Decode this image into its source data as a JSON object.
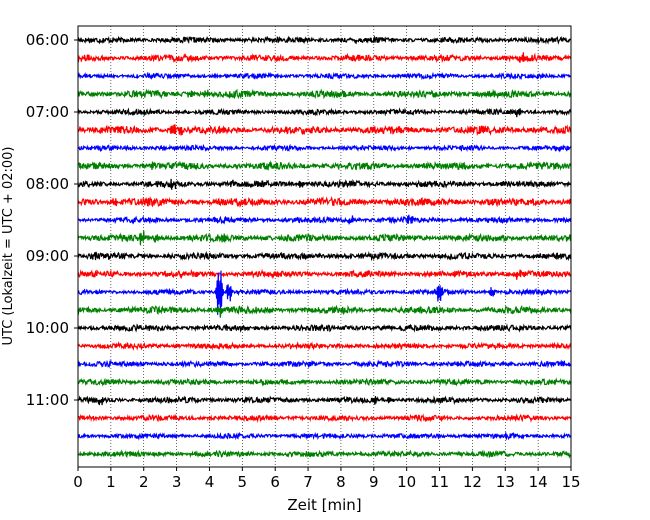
{
  "chart_data": {
    "type": "line",
    "title": "",
    "xlabel": "Zeit  [min]",
    "ylabel": "UTC (Lokalzeit = UTC + 02:00)",
    "xlim": [
      0,
      15
    ],
    "x_ticks": [
      0,
      1,
      2,
      3,
      4,
      5,
      6,
      7,
      8,
      9,
      10,
      11,
      12,
      13,
      14,
      15
    ],
    "x_tick_labels": [
      "0",
      "1",
      "2",
      "3",
      "4",
      "5",
      "6",
      "7",
      "8",
      "9",
      "10",
      "11",
      "12",
      "13",
      "14",
      "15"
    ],
    "y_tick_labels": [
      "06:00",
      "07:00",
      "08:00",
      "09:00",
      "10:00",
      "11:00"
    ],
    "grid": "vertical dotted at each minute",
    "color_cycle": [
      "#000000",
      "#ff0000",
      "#0000ff",
      "#008000"
    ],
    "traces": [
      {
        "start": "06:00",
        "color": "#000000",
        "amplitude": 0.16,
        "events": []
      },
      {
        "start": "06:15",
        "color": "#ff0000",
        "amplitude": 0.18,
        "events": [
          {
            "t": 13.5,
            "amp": 0.6
          }
        ]
      },
      {
        "start": "06:30",
        "color": "#0000ff",
        "amplitude": 0.14,
        "events": []
      },
      {
        "start": "06:45",
        "color": "#008000",
        "amplitude": 0.2,
        "events": [
          {
            "t": 3.4,
            "amp": 0.4
          },
          {
            "t": 3.9,
            "amp": 0.4
          }
        ]
      },
      {
        "start": "07:00",
        "color": "#000000",
        "amplitude": 0.15,
        "events": [
          {
            "t": 13.4,
            "amp": 0.5
          }
        ]
      },
      {
        "start": "07:15",
        "color": "#ff0000",
        "amplitude": 0.22,
        "events": [
          {
            "t": 2.9,
            "amp": 0.9
          },
          {
            "t": 3.1,
            "amp": 0.5
          }
        ]
      },
      {
        "start": "07:30",
        "color": "#0000ff",
        "amplitude": 0.14,
        "events": [
          {
            "t": 2.6,
            "amp": 0.3
          }
        ]
      },
      {
        "start": "07:45",
        "color": "#008000",
        "amplitude": 0.2,
        "events": [
          {
            "t": 2.3,
            "amp": 0.4
          }
        ]
      },
      {
        "start": "08:00",
        "color": "#000000",
        "amplitude": 0.18,
        "events": [
          {
            "t": 2.9,
            "amp": 0.5
          },
          {
            "t": 4.7,
            "amp": 0.4
          },
          {
            "t": 6.8,
            "amp": 0.4
          }
        ]
      },
      {
        "start": "08:15",
        "color": "#ff0000",
        "amplitude": 0.22,
        "events": [
          {
            "t": 1.1,
            "amp": 0.5
          },
          {
            "t": 15.0,
            "amp": 0.5
          }
        ]
      },
      {
        "start": "08:30",
        "color": "#0000ff",
        "amplitude": 0.16,
        "events": [
          {
            "t": 8.3,
            "amp": 0.5
          },
          {
            "t": 10.1,
            "amp": 0.5
          }
        ]
      },
      {
        "start": "08:45",
        "color": "#008000",
        "amplitude": 0.2,
        "events": [
          {
            "t": 1.95,
            "amp": 0.7
          },
          {
            "t": 2.4,
            "amp": 0.5
          },
          {
            "t": 4.4,
            "amp": 0.4
          }
        ]
      },
      {
        "start": "09:00",
        "color": "#000000",
        "amplitude": 0.18,
        "events": [
          {
            "t": 0.5,
            "amp": 0.4
          }
        ]
      },
      {
        "start": "09:15",
        "color": "#ff0000",
        "amplitude": 0.18,
        "events": [
          {
            "t": 13.4,
            "amp": 0.5
          }
        ]
      },
      {
        "start": "09:30",
        "color": "#0000ff",
        "amplitude": 0.14,
        "events": [
          {
            "t": 4.3,
            "amp": 3.3
          },
          {
            "t": 4.6,
            "amp": 1.1
          },
          {
            "t": 11.0,
            "amp": 1.1
          },
          {
            "t": 12.6,
            "amp": 0.6
          }
        ]
      },
      {
        "start": "09:45",
        "color": "#008000",
        "amplitude": 0.2,
        "events": [
          {
            "t": 4.3,
            "amp": 0.6
          }
        ]
      },
      {
        "start": "10:00",
        "color": "#000000",
        "amplitude": 0.18,
        "events": []
      },
      {
        "start": "10:15",
        "color": "#ff0000",
        "amplitude": 0.16,
        "events": []
      },
      {
        "start": "10:30",
        "color": "#0000ff",
        "amplitude": 0.16,
        "events": []
      },
      {
        "start": "10:45",
        "color": "#008000",
        "amplitude": 0.16,
        "events": []
      },
      {
        "start": "11:00",
        "color": "#000000",
        "amplitude": 0.16,
        "events": [
          {
            "t": 0.7,
            "amp": 0.4
          },
          {
            "t": 9.0,
            "amp": 0.4
          },
          {
            "t": 9.5,
            "amp": 0.4
          }
        ]
      },
      {
        "start": "11:15",
        "color": "#ff0000",
        "amplitude": 0.16,
        "events": []
      },
      {
        "start": "11:30",
        "color": "#0000ff",
        "amplitude": 0.14,
        "events": [
          {
            "t": 13.0,
            "amp": 0.3
          }
        ]
      },
      {
        "start": "11:45",
        "color": "#008000",
        "amplitude": 0.16,
        "events": []
      }
    ]
  }
}
